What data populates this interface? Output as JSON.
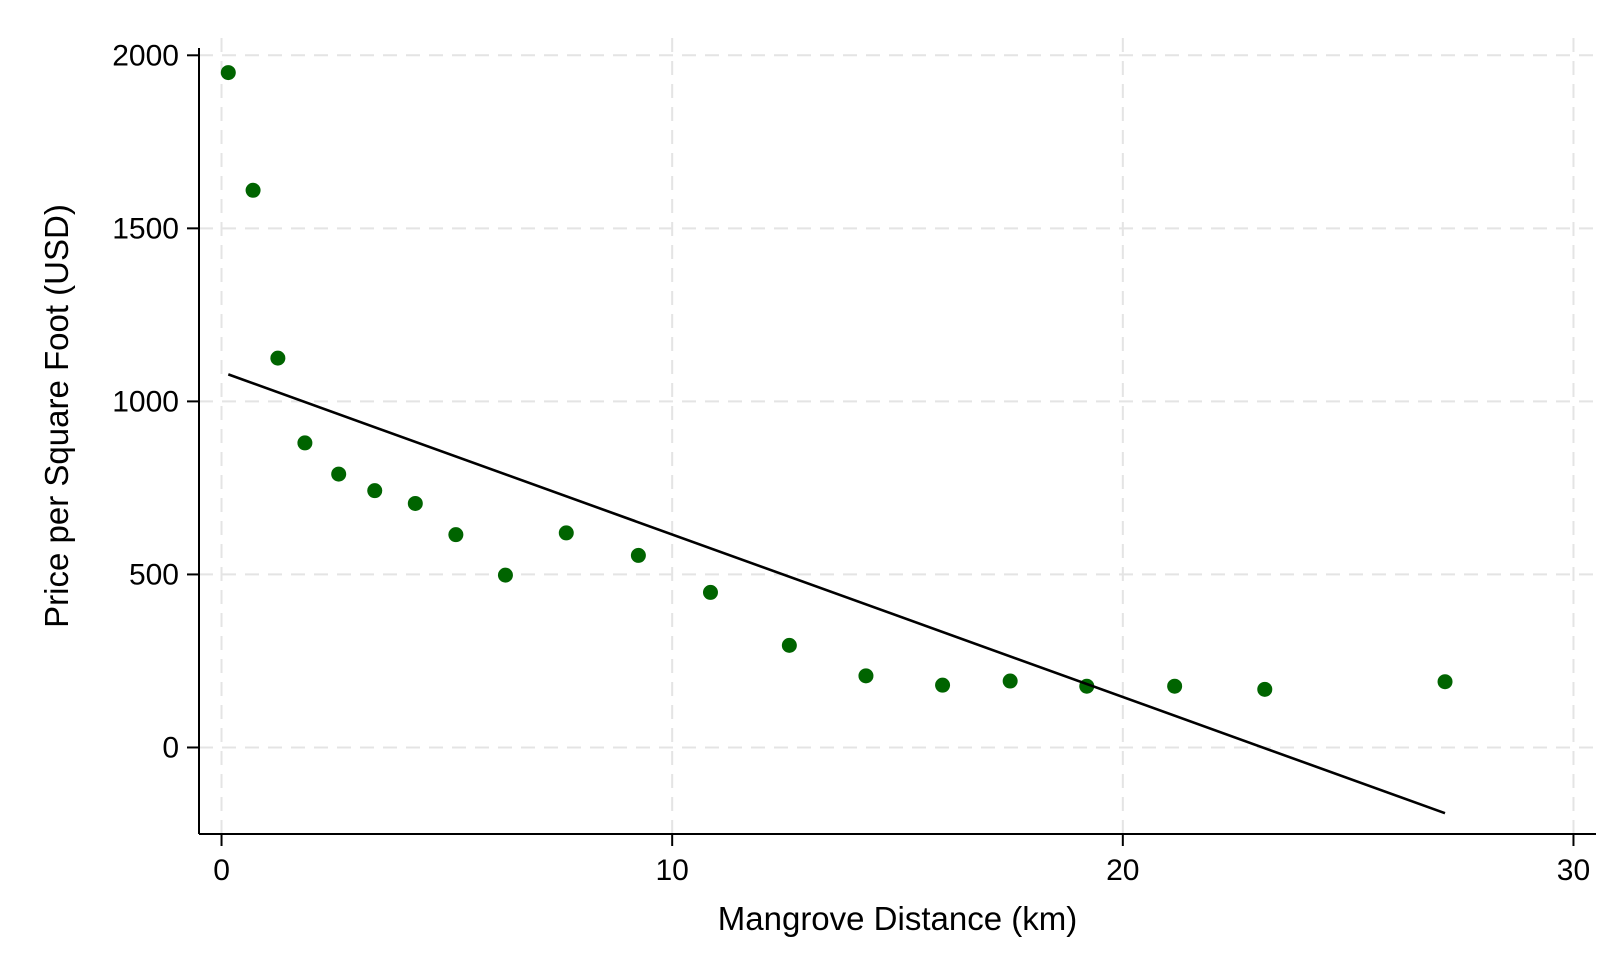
{
  "chart_data": {
    "type": "scatter",
    "title": "",
    "xlabel": "Mangrove Distance (km)",
    "ylabel": "Price per Square Foot (USD)",
    "xlim": [
      -0.5,
      30.5
    ],
    "ylim": [
      -250,
      2050
    ],
    "xticks": [
      0,
      10,
      20,
      30
    ],
    "yticks": [
      0,
      500,
      1000,
      1500,
      2000
    ],
    "xtick_labels": [
      "0",
      "10",
      "20",
      "30"
    ],
    "ytick_labels": [
      "0",
      "500",
      "1000",
      "1500",
      "2000"
    ],
    "grid": true,
    "legend": "none",
    "series": [
      {
        "type": "scatter",
        "color": "#006400",
        "points": [
          {
            "x": 0.15,
            "y": 1950
          },
          {
            "x": 0.7,
            "y": 1610
          },
          {
            "x": 1.25,
            "y": 1125
          },
          {
            "x": 1.85,
            "y": 880
          },
          {
            "x": 2.6,
            "y": 790
          },
          {
            "x": 3.4,
            "y": 742
          },
          {
            "x": 4.3,
            "y": 705
          },
          {
            "x": 5.2,
            "y": 615
          },
          {
            "x": 6.3,
            "y": 498
          },
          {
            "x": 7.65,
            "y": 620
          },
          {
            "x": 9.25,
            "y": 555
          },
          {
            "x": 10.85,
            "y": 448
          },
          {
            "x": 12.6,
            "y": 295
          },
          {
            "x": 14.3,
            "y": 207
          },
          {
            "x": 16.0,
            "y": 180
          },
          {
            "x": 17.5,
            "y": 192
          },
          {
            "x": 19.2,
            "y": 177
          },
          {
            "x": 21.15,
            "y": 177
          },
          {
            "x": 23.15,
            "y": 168
          },
          {
            "x": 27.15,
            "y": 190
          }
        ]
      },
      {
        "type": "line",
        "color": "#000000",
        "points": [
          {
            "x": 0.15,
            "y": 1078
          },
          {
            "x": 27.15,
            "y": -190
          }
        ]
      }
    ]
  }
}
